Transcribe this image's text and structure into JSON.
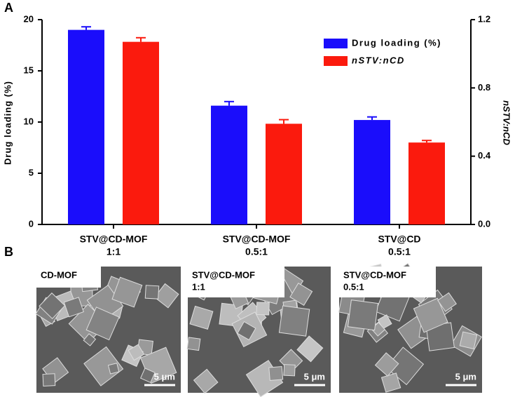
{
  "panels": {
    "a": "A",
    "b": "B"
  },
  "chart_data": {
    "type": "bar",
    "categories": [
      [
        "STV@CD-MOF",
        "1:1"
      ],
      [
        "STV@CD-MOF",
        "0.5:1"
      ],
      [
        "STV@CD",
        "0.5:1"
      ]
    ],
    "ylabel": "Drug loading (%)",
    "y2label": "nSTV:nCD",
    "ylim": [
      0,
      20
    ],
    "yticks": [
      0,
      5,
      10,
      15,
      20
    ],
    "y2lim": [
      0,
      1.2
    ],
    "y2ticks": [
      {
        "value": 0,
        "label": "0.0"
      },
      0.4,
      0.8,
      1.2
    ],
    "legend": "upper right",
    "series": [
      {
        "name": "Drug loading (%)",
        "color": "#1a0dfb",
        "values": [
          19.0,
          11.6,
          10.2
        ],
        "errors": [
          0.3,
          0.4,
          0.3
        ]
      },
      {
        "name": "nSTV:nCD",
        "color": "#fb1a0d",
        "axis": "y2",
        "values": [
          1.07,
          0.59,
          0.48
        ],
        "errors": [
          0.024,
          0.024,
          0.012
        ]
      }
    ]
  },
  "images": [
    {
      "label": [
        "CD-MOF"
      ],
      "scale_bar": "5 μm"
    },
    {
      "label": [
        "STV@CD-MOF",
        "1:1"
      ],
      "scale_bar": "5 μm"
    },
    {
      "label": [
        "STV@CD-MOF",
        "0.5:1"
      ],
      "scale_bar": "5 μm"
    }
  ]
}
